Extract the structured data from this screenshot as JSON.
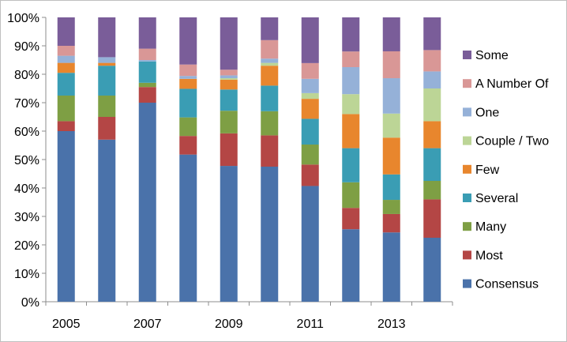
{
  "chart_data": {
    "type": "bar",
    "stacked": true,
    "normalized_percent": true,
    "title": "",
    "xlabel": "",
    "ylabel": "",
    "ylim": [
      0,
      100
    ],
    "y_ticks": [
      "0%",
      "10%",
      "20%",
      "30%",
      "40%",
      "50%",
      "60%",
      "70%",
      "80%",
      "90%",
      "100%"
    ],
    "x": [
      2005,
      2006,
      2007,
      2008,
      2009,
      2010,
      2011,
      2012,
      2013,
      2014
    ],
    "x_tick_labels": [
      "2005",
      "",
      "2007",
      "",
      "2009",
      "",
      "2011",
      "",
      "2013",
      ""
    ],
    "grid": false,
    "legend_position": "right",
    "series": [
      {
        "name": "Consensus",
        "color": "#4a72aa",
        "values": [
          60,
          57,
          70,
          51.5,
          48,
          47.5,
          40.5,
          25.5,
          24.5,
          22.5
        ]
      },
      {
        "name": "Most",
        "color": "#b44645",
        "values": [
          3.5,
          8,
          5.5,
          6.5,
          11.5,
          11,
          7.5,
          7.5,
          6.5,
          13.5
        ]
      },
      {
        "name": "Many",
        "color": "#7e9f44",
        "values": [
          9,
          7.5,
          1.5,
          6.5,
          8,
          8.5,
          7,
          9,
          5,
          6.5
        ]
      },
      {
        "name": "Several",
        "color": "#3a9db4",
        "values": [
          8,
          10.5,
          7.5,
          10,
          7.5,
          9,
          9,
          12,
          9,
          11.5
        ]
      },
      {
        "name": "Few",
        "color": "#e8862d",
        "values": [
          3.5,
          1,
          0,
          3.5,
          3.5,
          7,
          7,
          12,
          13,
          9.5
        ]
      },
      {
        "name": "Couple / Two",
        "color": "#bcd596",
        "values": [
          0,
          0,
          0,
          0,
          0.5,
          1,
          2,
          7,
          8.5,
          11.5
        ]
      },
      {
        "name": "One",
        "color": "#95b1d8",
        "values": [
          2.5,
          2,
          0.5,
          1,
          1,
          1.5,
          5,
          9.5,
          12.5,
          6
        ]
      },
      {
        "name": "A Number Of",
        "color": "#d99796",
        "values": [
          3.5,
          0,
          4,
          4,
          2,
          6.5,
          5.5,
          5.5,
          9.5,
          7.5
        ]
      },
      {
        "name": "Some",
        "color": "#7a5d99",
        "values": [
          10,
          14,
          11,
          16.5,
          18.5,
          8,
          16,
          12,
          12,
          11.5
        ]
      }
    ]
  }
}
